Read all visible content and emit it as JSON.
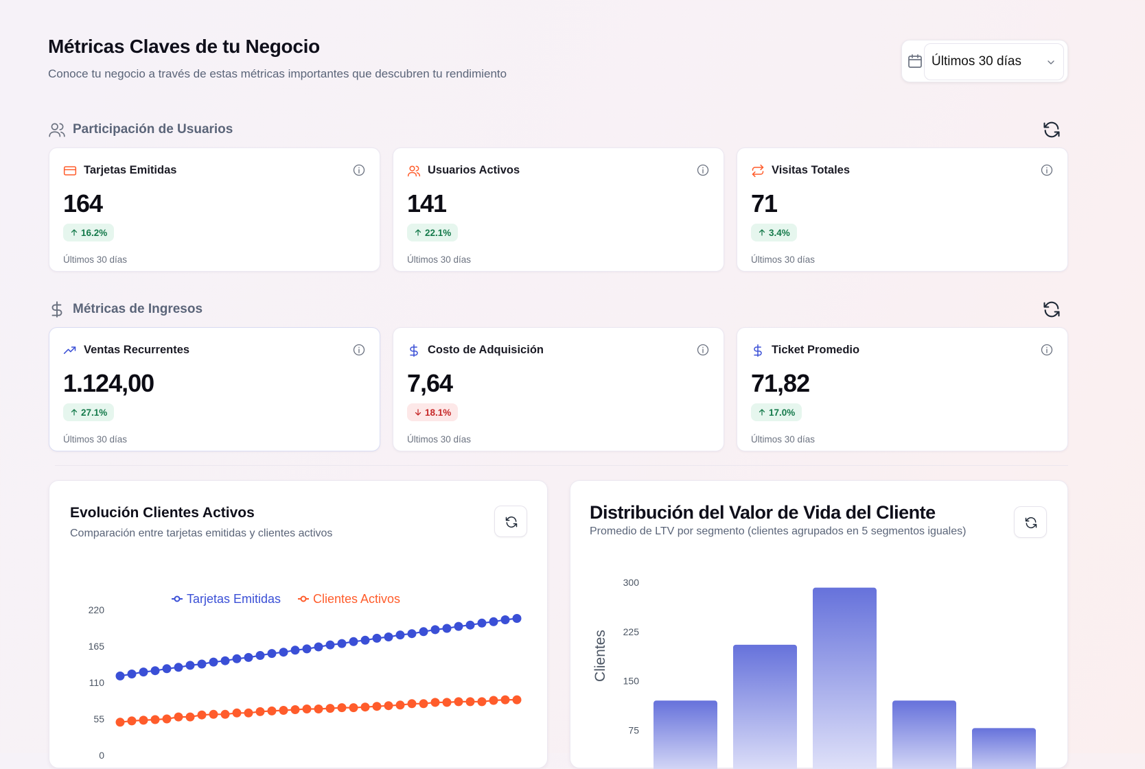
{
  "header": {
    "title": "Métricas Claves de tu Negocio",
    "subtitle": "Conoce tu negocio a través de estas métricas importantes que descubren tu rendimiento"
  },
  "date_filter": {
    "selected": "Últimos 30 días",
    "icon": "calendar-icon"
  },
  "sections": {
    "users": {
      "label": "Participación de Usuarios",
      "cards": [
        {
          "title": "Tarjetas Emitidas",
          "value": "164",
          "change": "16.2%",
          "trend": "up",
          "period": "Últimos 30 días",
          "icon": "credit-card-icon"
        },
        {
          "title": "Usuarios Activos",
          "value": "141",
          "change": "22.1%",
          "trend": "up",
          "period": "Últimos 30 días",
          "icon": "users-icon"
        },
        {
          "title": "Visitas Totales",
          "value": "71",
          "change": "3.4%",
          "trend": "up",
          "period": "Últimos 30 días",
          "icon": "repeat-icon"
        }
      ]
    },
    "revenue": {
      "label": "Métricas de Ingresos",
      "cards": [
        {
          "title": "Ventas Recurrentes",
          "value": "1.124,00",
          "change": "27.1%",
          "trend": "up",
          "period": "Últimos 30 días",
          "icon": "trending-up-icon"
        },
        {
          "title": "Costo de Adquisición",
          "value": "7,64",
          "change": "18.1%",
          "trend": "down",
          "period": "Últimos 30 días",
          "icon": "dollar-icon"
        },
        {
          "title": "Ticket Promedio",
          "value": "71,82",
          "change": "17.0%",
          "trend": "up",
          "period": "Últimos 30 días",
          "icon": "dollar-icon"
        }
      ]
    }
  },
  "charts": {
    "line_title": "Evolución Clientes Activos",
    "line_subtitle": "Comparación entre tarjetas emitidas y clientes activos",
    "bar_title": "Distribución del Valor de Vida del Cliente",
    "bar_subtitle": "Promedio de LTV por segmento (clientes agrupados en 5 segmentos iguales)"
  },
  "colors": {
    "blue": "#3a4fd6",
    "orange": "#ff5c2b",
    "bar_top": "#6672db",
    "bar_bottom": "#e8e9fb"
  },
  "chart_data": [
    {
      "type": "line",
      "title": "Evolución Clientes Activos",
      "ylim": [
        0,
        220
      ],
      "yticks": [
        "220",
        "165",
        "110",
        "55",
        "0"
      ],
      "series": [
        {
          "name": "Tarjetas Emitidas",
          "values": [
            120,
            123,
            126,
            128,
            131,
            133,
            136,
            138,
            141,
            143,
            146,
            148,
            151,
            154,
            156,
            159,
            161,
            164,
            167,
            169,
            172,
            174,
            177,
            179,
            182,
            184,
            187,
            190,
            192,
            195,
            197,
            200,
            202,
            205,
            207
          ]
        },
        {
          "name": "Clientes Activos",
          "values": [
            50,
            52,
            53,
            54,
            55,
            58,
            58,
            61,
            62,
            62,
            64,
            64,
            66,
            67,
            68,
            69,
            70,
            70,
            71,
            72,
            72,
            73,
            74,
            75,
            76,
            78,
            78,
            80,
            80,
            81,
            81,
            81,
            83,
            84,
            84
          ]
        }
      ]
    },
    {
      "type": "bar",
      "title": "Distribución del Valor de Vida del Cliente",
      "ylabel": "Clientes",
      "ylim": [
        0,
        300
      ],
      "yticks": [
        "300",
        "225",
        "150",
        "75"
      ],
      "values": [
        120,
        205,
        292,
        120,
        78
      ]
    }
  ]
}
